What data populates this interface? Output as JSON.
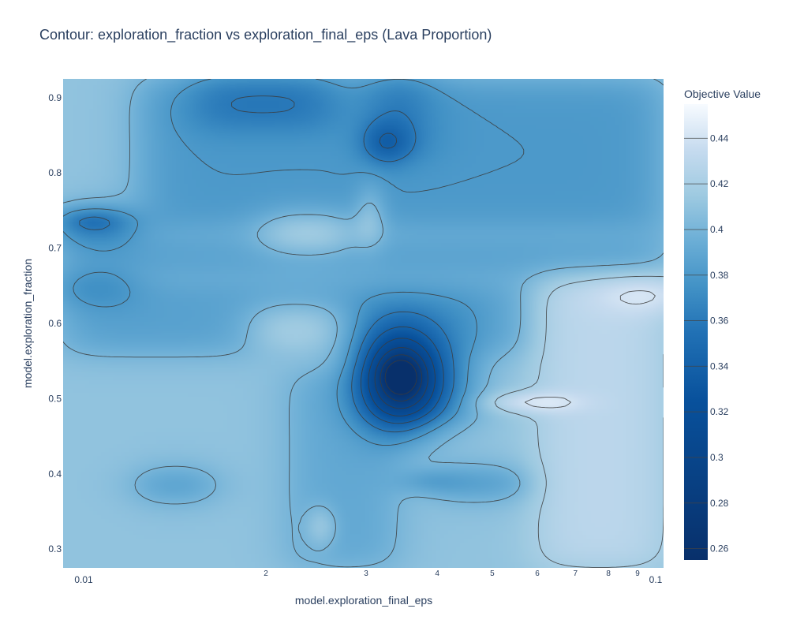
{
  "chart_data": {
    "type": "heatmap",
    "subtype": "contour",
    "title": "Contour: exploration_fraction vs exploration_final_eps (Lava Proportion)",
    "xlabel": "model.exploration_final_eps",
    "ylabel": "model.exploration_fraction",
    "x_scale": "log",
    "xlim": [
      0.0088,
      0.1
    ],
    "ylim": [
      0.275,
      0.925
    ],
    "x_ticks": [
      {
        "value": 0.01,
        "label": "0.01",
        "major": true
      },
      {
        "value": 0.02,
        "label": "2",
        "major": false
      },
      {
        "value": 0.03,
        "label": "3",
        "major": false
      },
      {
        "value": 0.04,
        "label": "4",
        "major": false
      },
      {
        "value": 0.05,
        "label": "5",
        "major": false
      },
      {
        "value": 0.06,
        "label": "6",
        "major": false
      },
      {
        "value": 0.07,
        "label": "7",
        "major": false
      },
      {
        "value": 0.08,
        "label": "8",
        "major": false
      },
      {
        "value": 0.09,
        "label": "9",
        "major": false
      },
      {
        "value": 0.1,
        "label": "0.1",
        "major": true
      }
    ],
    "y_ticks": [
      {
        "value": 0.3,
        "label": "0.3"
      },
      {
        "value": 0.4,
        "label": "0.4"
      },
      {
        "value": 0.5,
        "label": "0.5"
      },
      {
        "value": 0.6,
        "label": "0.6"
      },
      {
        "value": 0.7,
        "label": "0.7"
      },
      {
        "value": 0.8,
        "label": "0.8"
      },
      {
        "value": 0.9,
        "label": "0.9"
      }
    ],
    "colorbar": {
      "title": "Objective Value",
      "min": 0.255,
      "max": 0.455,
      "colorscale": "Blues (reversed)",
      "ticks": [
        0.26,
        0.28,
        0.3,
        0.32,
        0.34,
        0.36,
        0.38,
        0.4,
        0.42,
        0.44
      ],
      "tick_labels": [
        "0.26",
        "0.28",
        "0.3",
        "0.32",
        "0.34",
        "0.36",
        "0.38",
        "0.4",
        "0.42",
        "0.44"
      ]
    },
    "z_regions": [
      {
        "x": [
          0.0088,
          0.1
        ],
        "y": [
          0.275,
          0.925
        ],
        "z": 0.41
      },
      {
        "x": [
          0.012,
          0.1
        ],
        "y": [
          0.72,
          0.925
        ],
        "z": 0.38
      },
      {
        "x": [
          0.0088,
          0.1
        ],
        "y": [
          0.66,
          0.72
        ],
        "z": 0.385
      },
      {
        "x": [
          0.0088,
          0.06
        ],
        "y": [
          0.56,
          0.66
        ],
        "z": 0.385
      },
      {
        "x": [
          0.022,
          0.034
        ],
        "y": [
          0.275,
          0.54
        ],
        "z": 0.39
      },
      {
        "x": [
          0.015,
          0.026
        ],
        "y": [
          0.86,
          0.925
        ],
        "z": 0.355
      },
      {
        "x": [
          0.031,
          0.038
        ],
        "y": [
          0.82,
          0.925
        ],
        "z": 0.355
      },
      {
        "x": [
          0.0088,
          0.0115
        ],
        "y": [
          0.71,
          0.745
        ],
        "z": 0.345
      },
      {
        "x": [
          0.0088,
          0.0115
        ],
        "y": [
          0.63,
          0.665
        ],
        "z": 0.36
      },
      {
        "x": [
          0.029,
          0.046
        ],
        "y": [
          0.47,
          0.63
        ],
        "z": 0.37
      },
      {
        "x": [
          0.04,
          0.06
        ],
        "y": [
          0.375,
          0.4
        ],
        "z": 0.365
      },
      {
        "x": [
          0.012,
          0.016
        ],
        "y": [
          0.37,
          0.4
        ],
        "z": 0.37
      },
      {
        "x": [
          0.06,
          0.1
        ],
        "y": [
          0.275,
          0.66
        ],
        "z": 0.43
      },
      {
        "x": [
          0.02,
          0.028
        ],
        "y": [
          0.7,
          0.74
        ],
        "z": 0.43
      },
      {
        "x": [
          0.019,
          0.027
        ],
        "y": [
          0.56,
          0.62
        ],
        "z": 0.425
      }
    ],
    "z_peaks": [
      {
        "x": 0.0345,
        "y": 0.525,
        "sx": 0.05,
        "sy": 0.045,
        "amp": -0.11
      },
      {
        "x": 0.0345,
        "y": 0.53,
        "sx": 0.02,
        "sy": 0.015,
        "amp": -0.05
      },
      {
        "x": 0.0325,
        "y": 0.84,
        "sx": 0.03,
        "sy": 0.02,
        "amp": -0.03
      },
      {
        "x": 0.0098,
        "y": 0.738,
        "sx": 0.05,
        "sy": 0.012,
        "amp": -0.02
      },
      {
        "x": 0.0385,
        "y": 0.39,
        "sx": 0.04,
        "sy": 0.012,
        "amp": -0.015
      },
      {
        "x": 0.0067,
        "y": 0.84,
        "sx": 0.05,
        "sy": 0.025,
        "amp": 0
      },
      {
        "x": 0.098,
        "y": 0.64,
        "sx": 0.08,
        "sy": 0.02,
        "amp": 0.02
      },
      {
        "x": 0.058,
        "y": 0.495,
        "sx": 0.06,
        "sy": 0.01,
        "amp": 0.025
      },
      {
        "x": 0.025,
        "y": 0.33,
        "sx": 0.02,
        "sy": 0.02,
        "amp": 0.02
      },
      {
        "x": 0.0305,
        "y": 0.745,
        "sx": 0.02,
        "sy": 0.03,
        "amp": 0.02
      }
    ],
    "contour_levels": [
      0.26,
      0.28,
      0.3,
      0.32,
      0.34,
      0.36,
      0.38,
      0.4,
      0.42,
      0.44
    ]
  }
}
